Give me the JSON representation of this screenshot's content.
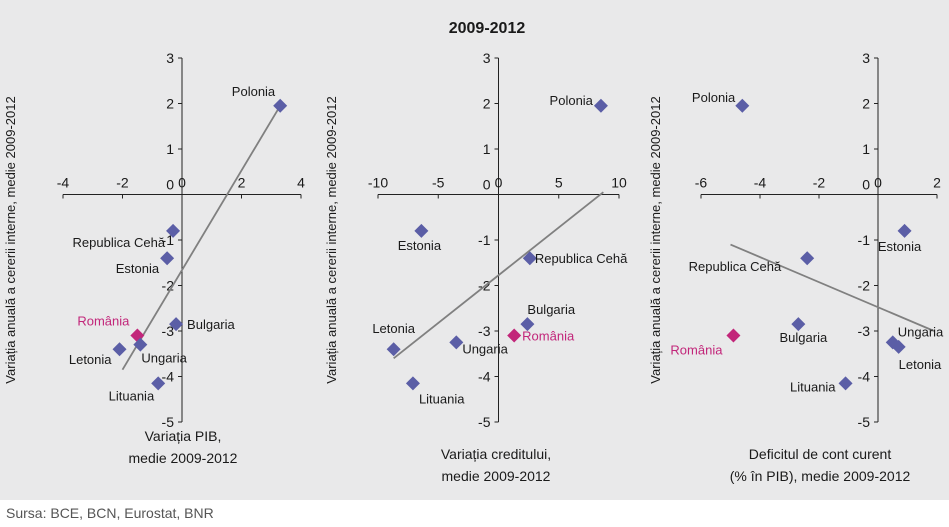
{
  "figure": {
    "title": "2009-2012",
    "source": "Sursa: BCE, BCN, Eurostat, BNR"
  },
  "colors": {
    "background": "#e9e9ea",
    "country_marker": "#5b5ea6",
    "romania_marker": "#c2267a",
    "romania_label": "#c2267a",
    "trendline": "#808080",
    "text": "#1a1a1a"
  },
  "chart_data": [
    {
      "type": "scatter",
      "title": "",
      "xlabel": "Variația PIB,\nmedie 2009-2012",
      "ylabel": "Variația anuală a cererii interne, medie 2009-2012",
      "xlim": [
        -4,
        4
      ],
      "ylim": [
        -5,
        3
      ],
      "xticks": [
        -4,
        -2,
        0,
        2,
        4
      ],
      "yticks": [
        -5,
        -4,
        -3,
        -2,
        -1,
        0,
        1,
        2,
        3
      ],
      "grid": false,
      "points": [
        {
          "label": "Polonia",
          "x": 3.3,
          "y": 1.95,
          "highlight": false
        },
        {
          "label": "Republica Cehă",
          "x": -0.3,
          "y": -0.8,
          "highlight": false
        },
        {
          "label": "Estonia",
          "x": -0.5,
          "y": -1.4,
          "highlight": false
        },
        {
          "label": "România",
          "x": -1.5,
          "y": -3.1,
          "highlight": true
        },
        {
          "label": "Bulgaria",
          "x": -0.2,
          "y": -2.85,
          "highlight": false
        },
        {
          "label": "Ungaria",
          "x": -1.4,
          "y": -3.3,
          "highlight": false
        },
        {
          "label": "Letonia",
          "x": -2.1,
          "y": -3.4,
          "highlight": false
        },
        {
          "label": "Lituania",
          "x": -0.8,
          "y": -4.15,
          "highlight": false
        }
      ],
      "trendline": {
        "x": [
          -2.0,
          3.3
        ],
        "y": [
          -3.85,
          1.95
        ]
      }
    },
    {
      "type": "scatter",
      "title": "",
      "xlabel": "Variația creditului,\nmedie 2009-2012",
      "ylabel": "Variația anuală a cererii interne, medie 2009-2012",
      "xlim": [
        -10,
        10
      ],
      "ylim": [
        -5,
        3
      ],
      "xticks": [
        -10,
        -5,
        0,
        5,
        10
      ],
      "yticks": [
        -5,
        -4,
        -3,
        -2,
        -1,
        0,
        1,
        2,
        3
      ],
      "grid": false,
      "points": [
        {
          "label": "Polonia",
          "x": 8.5,
          "y": 1.95,
          "highlight": false
        },
        {
          "label": "Estonia",
          "x": -6.4,
          "y": -0.8,
          "highlight": false
        },
        {
          "label": "Republica Cehă",
          "x": 2.6,
          "y": -1.4,
          "highlight": false
        },
        {
          "label": "Bulgaria",
          "x": 2.4,
          "y": -2.85,
          "highlight": false
        },
        {
          "label": "România",
          "x": 1.3,
          "y": -3.1,
          "highlight": true
        },
        {
          "label": "Ungaria",
          "x": -3.5,
          "y": -3.25,
          "highlight": false
        },
        {
          "label": "Letonia",
          "x": -8.7,
          "y": -3.4,
          "highlight": false
        },
        {
          "label": "Lituania",
          "x": -7.1,
          "y": -4.15,
          "highlight": false
        }
      ],
      "trendline": {
        "x": [
          -8.7,
          8.7
        ],
        "y": [
          -3.6,
          0.05
        ]
      }
    },
    {
      "type": "scatter",
      "title": "",
      "xlabel": "Deficitul de cont curent\n(% în PIB), medie 2009-2012",
      "ylabel": "Variația anuală a cererii interne, medie 2009-2012",
      "xlim": [
        -6,
        2
      ],
      "ylim": [
        -5,
        3
      ],
      "xticks": [
        -6,
        -4,
        -2,
        0,
        2
      ],
      "yticks": [
        -5,
        -4,
        -3,
        -2,
        -1,
        0,
        1,
        2,
        3
      ],
      "grid": false,
      "points": [
        {
          "label": "Polonia",
          "x": -4.6,
          "y": 1.95,
          "highlight": false
        },
        {
          "label": "Estonia",
          "x": 0.9,
          "y": -0.8,
          "highlight": false
        },
        {
          "label": "Republica Cehă",
          "x": -2.4,
          "y": -1.4,
          "highlight": false
        },
        {
          "label": "Bulgaria",
          "x": -2.7,
          "y": -2.85,
          "highlight": false
        },
        {
          "label": "România",
          "x": -4.9,
          "y": -3.1,
          "highlight": true
        },
        {
          "label": "Ungaria",
          "x": 0.5,
          "y": -3.25,
          "highlight": false
        },
        {
          "label": "Letonia",
          "x": 0.7,
          "y": -3.35,
          "highlight": false
        },
        {
          "label": "Lituania",
          "x": -1.1,
          "y": -4.15,
          "highlight": false
        }
      ],
      "trendline": {
        "x": [
          -5.0,
          1.9
        ],
        "y": [
          -1.1,
          -3.0
        ]
      }
    }
  ]
}
